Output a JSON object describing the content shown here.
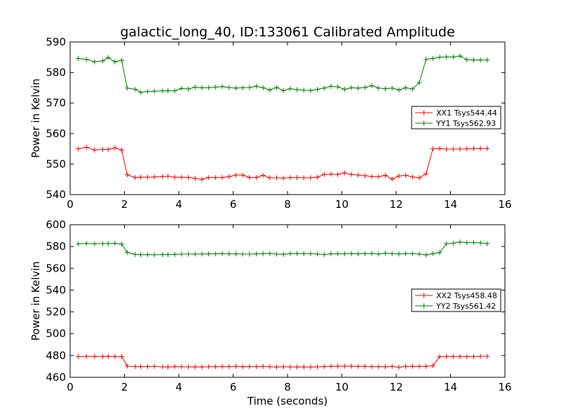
{
  "chart_data": [
    {
      "type": "line",
      "title": "galactic_long_40, ID:133061 Calibrated Amplitude",
      "xlabel": "",
      "ylabel": "Power in Kelvin",
      "xlim": [
        0,
        16
      ],
      "ylim": [
        540,
        590
      ],
      "xticks": [
        "0",
        "2",
        "4",
        "6",
        "8",
        "10",
        "12",
        "14",
        "16"
      ],
      "yticks": [
        "540",
        "550",
        "560",
        "570",
        "580",
        "590"
      ],
      "grid": false,
      "legend_position": "center-right",
      "x": [
        0.3,
        0.6,
        0.9,
        1.2,
        1.4,
        1.65,
        1.9,
        2.1,
        2.4,
        2.6,
        2.85,
        3.1,
        3.4,
        3.6,
        3.85,
        4.1,
        4.35,
        4.6,
        4.85,
        5.1,
        5.35,
        5.6,
        5.85,
        6.1,
        6.35,
        6.6,
        6.85,
        7.1,
        7.35,
        7.6,
        7.85,
        8.1,
        8.35,
        8.6,
        8.85,
        9.1,
        9.35,
        9.6,
        9.85,
        10.1,
        10.35,
        10.6,
        10.85,
        11.1,
        11.35,
        11.6,
        11.85,
        12.1,
        12.35,
        12.6,
        12.85,
        13.1,
        13.35,
        13.6,
        13.85,
        14.1,
        14.35,
        14.6,
        14.85,
        15.1,
        15.35
      ],
      "series": [
        {
          "name": "XX1 Tsys544.44",
          "color": "#ff0000",
          "values": [
            555.0,
            555.5,
            554.6,
            554.8,
            554.8,
            555.3,
            554.6,
            546.5,
            545.6,
            545.7,
            545.7,
            545.8,
            545.9,
            546.0,
            545.7,
            545.7,
            545.6,
            545.3,
            545.0,
            545.6,
            545.6,
            545.6,
            545.9,
            546.4,
            546.4,
            545.6,
            545.6,
            546.3,
            545.5,
            545.5,
            545.4,
            545.6,
            545.6,
            545.5,
            545.5,
            545.7,
            546.6,
            546.7,
            546.6,
            547.1,
            546.6,
            546.4,
            546.2,
            545.9,
            545.9,
            546.3,
            545.1,
            546.1,
            546.3,
            545.8,
            545.5,
            546.8,
            555.0,
            555.1,
            554.9,
            554.9,
            554.9,
            555.0,
            555.1,
            555.1,
            555.1
          ]
        },
        {
          "name": "YY1 Tsys562.93",
          "color": "#008000",
          "values": [
            584.6,
            584.3,
            583.5,
            583.8,
            584.9,
            583.5,
            584.0,
            574.9,
            574.5,
            573.5,
            573.8,
            573.9,
            574.0,
            574.0,
            574.0,
            574.8,
            574.6,
            575.2,
            575.0,
            575.0,
            575.2,
            575.4,
            575.1,
            574.9,
            575.0,
            575.1,
            575.5,
            575.0,
            574.3,
            575.1,
            574.1,
            574.7,
            574.4,
            574.2,
            574.1,
            574.5,
            574.9,
            575.5,
            575.3,
            574.5,
            575.0,
            574.9,
            575.1,
            575.7,
            574.9,
            574.7,
            574.9,
            574.3,
            575.0,
            574.6,
            576.7,
            584.3,
            584.6,
            585.0,
            585.1,
            585.1,
            585.4,
            584.2,
            584.1,
            584.1,
            584.1
          ]
        }
      ]
    },
    {
      "type": "line",
      "title": "",
      "xlabel": "Time (seconds)",
      "ylabel": "Power in Kelvin",
      "xlim": [
        0,
        16
      ],
      "ylim": [
        460,
        600
      ],
      "xticks": [
        "0",
        "2",
        "4",
        "6",
        "8",
        "10",
        "12",
        "14",
        "16"
      ],
      "yticks": [
        "460",
        "480",
        "500",
        "520",
        "540",
        "560",
        "580",
        "600"
      ],
      "grid": false,
      "legend_position": "center-right",
      "x": [
        0.3,
        0.6,
        0.9,
        1.2,
        1.4,
        1.65,
        1.9,
        2.1,
        2.4,
        2.6,
        2.85,
        3.1,
        3.4,
        3.6,
        3.85,
        4.1,
        4.35,
        4.6,
        4.85,
        5.1,
        5.35,
        5.6,
        5.85,
        6.1,
        6.35,
        6.6,
        6.85,
        7.1,
        7.35,
        7.6,
        7.85,
        8.1,
        8.35,
        8.6,
        8.85,
        9.1,
        9.35,
        9.6,
        9.85,
        10.1,
        10.35,
        10.6,
        10.85,
        11.1,
        11.35,
        11.6,
        11.85,
        12.1,
        12.35,
        12.6,
        12.85,
        13.1,
        13.35,
        13.6,
        13.85,
        14.1,
        14.35,
        14.6,
        14.85,
        15.1,
        15.35
      ],
      "series": [
        {
          "name": "XX2 Tsys458.48",
          "color": "#ff0000",
          "values": [
            479.0,
            479.2,
            479.1,
            479.1,
            479.2,
            479.1,
            479.0,
            470.3,
            469.9,
            469.8,
            469.9,
            470.0,
            469.6,
            469.5,
            469.8,
            469.7,
            469.6,
            469.5,
            469.5,
            469.7,
            469.8,
            469.8,
            469.8,
            470.0,
            469.8,
            469.8,
            469.8,
            470.0,
            469.7,
            469.4,
            469.7,
            469.5,
            469.5,
            469.5,
            469.4,
            469.6,
            469.9,
            470.1,
            470.2,
            470.2,
            470.2,
            470.0,
            470.0,
            469.8,
            469.8,
            469.7,
            470.0,
            469.2,
            470.0,
            470.1,
            470.0,
            470.0,
            470.6,
            479.0,
            479.1,
            479.0,
            479.0,
            479.0,
            479.0,
            479.2,
            479.3
          ]
        },
        {
          "name": "YY2 Tsys561.42",
          "color": "#008000",
          "values": [
            582.5,
            582.8,
            582.5,
            582.7,
            582.7,
            582.9,
            582.2,
            574.6,
            572.7,
            572.5,
            572.5,
            572.4,
            572.6,
            572.6,
            572.8,
            573.0,
            573.0,
            573.1,
            573.1,
            573.2,
            573.3,
            573.4,
            573.3,
            573.3,
            573.0,
            573.0,
            573.2,
            573.4,
            573.6,
            573.0,
            572.9,
            573.4,
            573.5,
            573.4,
            573.4,
            573.1,
            572.6,
            573.3,
            573.3,
            573.3,
            573.5,
            573.3,
            573.4,
            573.6,
            573.1,
            573.8,
            573.4,
            573.1,
            573.4,
            573.4,
            573.1,
            572.3,
            573.4,
            574.4,
            582.6,
            583.0,
            584.1,
            583.6,
            583.6,
            583.3,
            582.6
          ]
        }
      ]
    }
  ]
}
